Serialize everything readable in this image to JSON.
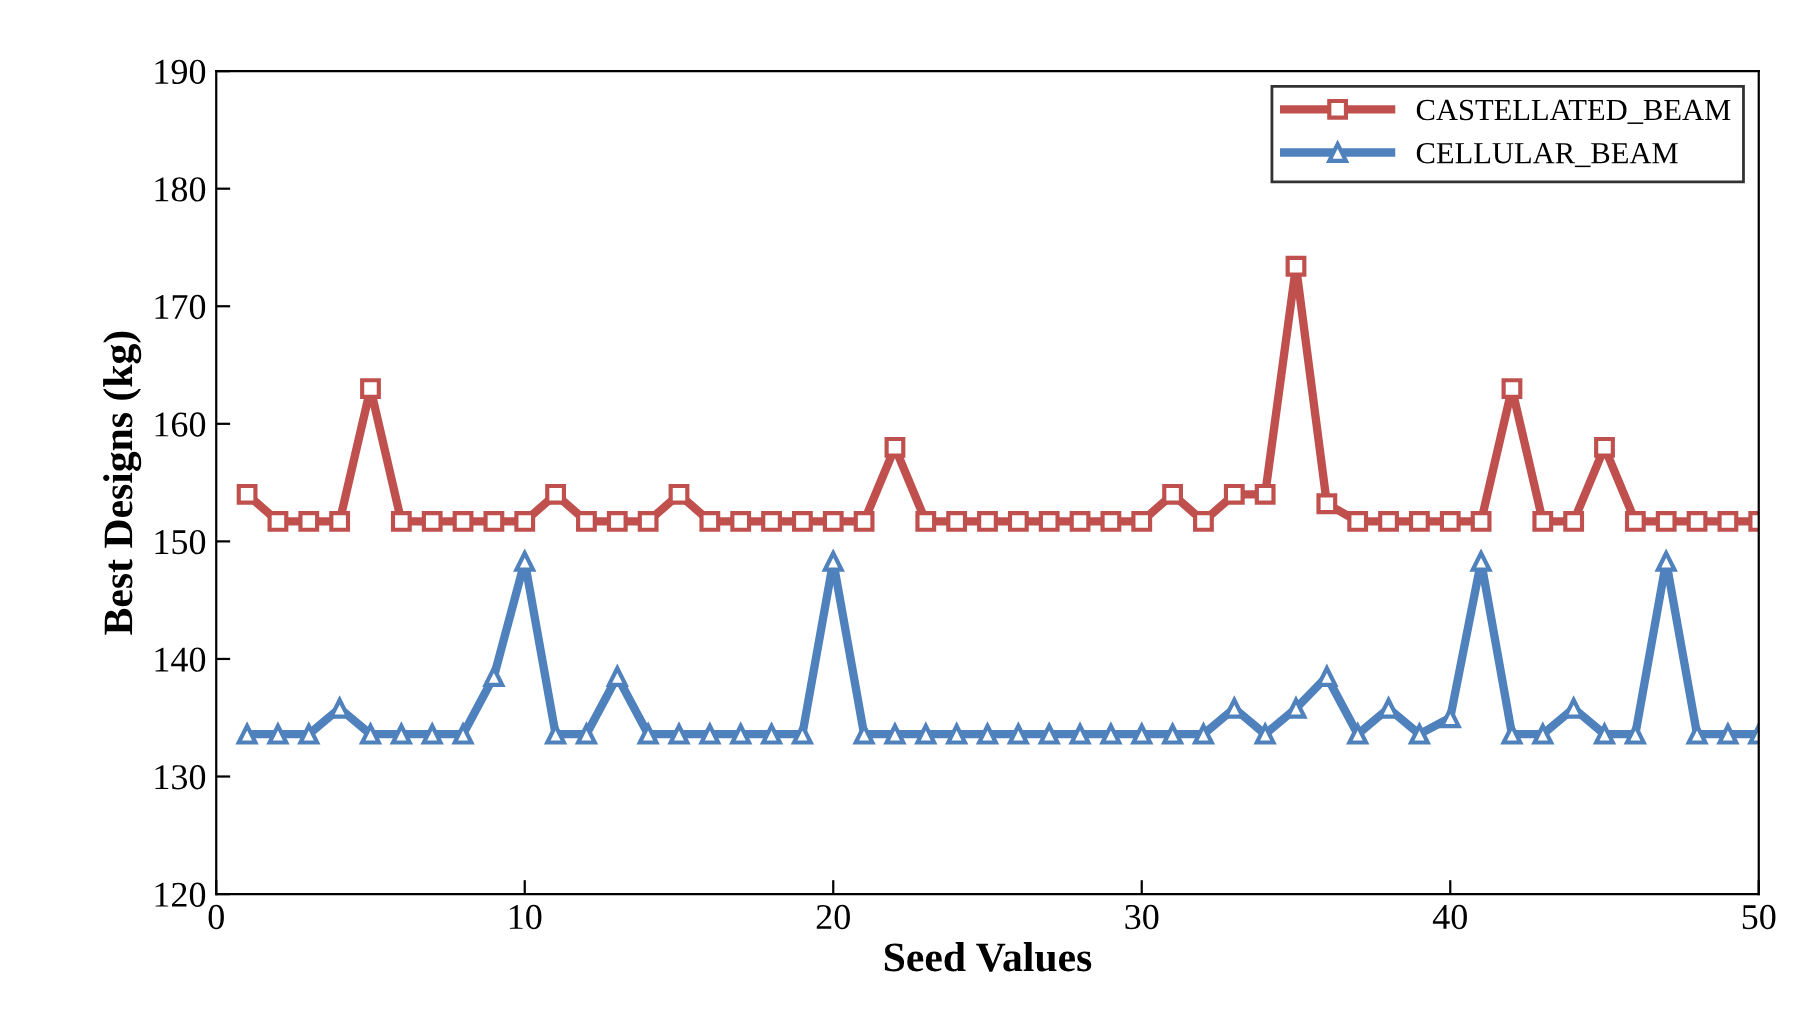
{
  "chart_data": {
    "type": "line",
    "xlabel": "Seed Values",
    "ylabel": "Best Designs (kg)",
    "x": [
      1,
      2,
      3,
      4,
      5,
      6,
      7,
      8,
      9,
      10,
      11,
      12,
      13,
      14,
      15,
      16,
      17,
      18,
      19,
      20,
      21,
      22,
      23,
      24,
      25,
      26,
      27,
      28,
      29,
      30,
      31,
      32,
      33,
      34,
      35,
      36,
      37,
      38,
      39,
      40,
      41,
      42,
      43,
      44,
      45,
      46,
      47,
      48,
      49,
      50
    ],
    "series": [
      {
        "name": "CASTELLATED_BEAM",
        "color": "#c0504d",
        "marker": "square",
        "values": [
          154,
          151.7,
          151.7,
          151.7,
          163,
          151.7,
          151.7,
          151.7,
          151.7,
          151.7,
          154,
          151.7,
          151.7,
          151.7,
          154,
          151.7,
          151.7,
          151.7,
          151.7,
          151.7,
          151.7,
          158,
          151.7,
          151.7,
          151.7,
          151.7,
          151.7,
          151.7,
          151.7,
          151.7,
          154,
          151.7,
          154,
          154,
          173.4,
          153.2,
          151.7,
          151.7,
          151.7,
          151.7,
          151.7,
          163,
          151.7,
          151.7,
          158,
          151.7,
          151.7,
          151.7,
          151.7,
          151.7
        ]
      },
      {
        "name": "CELLULAR_BEAM",
        "color": "#4f81bd",
        "marker": "triangle",
        "values": [
          133.6,
          133.6,
          133.6,
          135.8,
          133.6,
          133.6,
          133.6,
          133.6,
          138.5,
          148.3,
          133.6,
          133.6,
          138.5,
          133.6,
          133.6,
          133.6,
          133.6,
          133.6,
          133.6,
          148.3,
          133.6,
          133.6,
          133.6,
          133.6,
          133.6,
          133.6,
          133.6,
          133.6,
          133.6,
          133.6,
          133.6,
          133.6,
          135.8,
          133.6,
          135.8,
          138.5,
          133.6,
          135.8,
          133.6,
          135,
          148.3,
          133.6,
          133.6,
          135.8,
          133.6,
          133.6,
          148.3,
          133.6,
          133.6,
          133.6
        ]
      }
    ],
    "xlim": [
      0,
      50
    ],
    "xticks": [
      0,
      10,
      20,
      30,
      40,
      50
    ],
    "ylim": [
      120,
      190
    ],
    "yticks": [
      120,
      130,
      140,
      150,
      160,
      170,
      180,
      190
    ],
    "grid": false,
    "legend": "top right",
    "line_style": "solid"
  }
}
